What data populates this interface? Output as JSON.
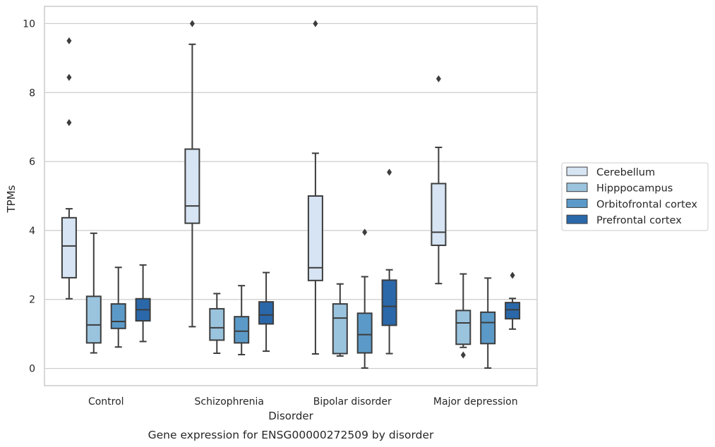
{
  "chart_data": {
    "type": "box",
    "title": "",
    "caption": "Gene expression for ENSG00000272509 by disorder",
    "xlabel": "Disorder",
    "ylabel": "TPMs",
    "ylim": [
      -0.5,
      10.5
    ],
    "yticks": [
      "0",
      "2",
      "4",
      "6",
      "8",
      "10"
    ],
    "grid": "horizontal",
    "legend_position": "right",
    "categories": [
      "Control",
      "Schizophrenia",
      "Bipolar disorder",
      "Major depression"
    ],
    "series": [
      {
        "name": "Cerebellum",
        "color": "#d6e4f3",
        "boxes": [
          {
            "whislo": 2.02,
            "q1": 2.63,
            "med": 3.55,
            "q3": 4.37,
            "whishi": 4.63,
            "fliers": [
              7.13,
              8.44,
              9.5
            ]
          },
          {
            "whislo": 1.21,
            "q1": 4.21,
            "med": 4.71,
            "q3": 6.36,
            "whishi": 9.4,
            "fliers": [
              10.0
            ]
          },
          {
            "whislo": 0.42,
            "q1": 2.55,
            "med": 2.92,
            "q3": 5.0,
            "whishi": 6.24,
            "fliers": [
              10.0
            ]
          },
          {
            "whislo": 2.46,
            "q1": 3.57,
            "med": 3.95,
            "q3": 5.36,
            "whishi": 6.41,
            "fliers": [
              8.4
            ]
          }
        ]
      },
      {
        "name": "Hipppocampus",
        "color": "#9ac3de",
        "boxes": [
          {
            "whislo": 0.45,
            "q1": 0.74,
            "med": 1.26,
            "q3": 2.09,
            "whishi": 3.92,
            "fliers": []
          },
          {
            "whislo": 0.44,
            "q1": 0.82,
            "med": 1.18,
            "q3": 1.73,
            "whishi": 2.17,
            "fliers": []
          },
          {
            "whislo": 0.36,
            "q1": 0.43,
            "med": 1.46,
            "q3": 1.87,
            "whishi": 2.45,
            "fliers": []
          },
          {
            "whislo": 0.61,
            "q1": 0.7,
            "med": 1.32,
            "q3": 1.68,
            "whishi": 2.74,
            "fliers": [
              0.39
            ]
          }
        ]
      },
      {
        "name": "Orbitofrontal cortex",
        "color": "#5b9ac8",
        "boxes": [
          {
            "whislo": 0.62,
            "q1": 1.16,
            "med": 1.36,
            "q3": 1.87,
            "whishi": 2.93,
            "fliers": []
          },
          {
            "whislo": 0.4,
            "q1": 0.74,
            "med": 1.08,
            "q3": 1.5,
            "whishi": 2.4,
            "fliers": []
          },
          {
            "whislo": 0.01,
            "q1": 0.45,
            "med": 0.98,
            "q3": 1.6,
            "whishi": 2.66,
            "fliers": [
              3.95
            ]
          },
          {
            "whislo": 0.01,
            "q1": 0.72,
            "med": 1.33,
            "q3": 1.63,
            "whishi": 2.62,
            "fliers": []
          }
        ]
      },
      {
        "name": "Prefrontal cortex",
        "color": "#2a68aa",
        "boxes": [
          {
            "whislo": 0.78,
            "q1": 1.38,
            "med": 1.7,
            "q3": 2.02,
            "whishi": 3.0,
            "fliers": []
          },
          {
            "whislo": 0.5,
            "q1": 1.29,
            "med": 1.55,
            "q3": 1.93,
            "whishi": 2.78,
            "fliers": []
          },
          {
            "whislo": 0.43,
            "q1": 1.25,
            "med": 1.8,
            "q3": 2.56,
            "whishi": 2.86,
            "fliers": [
              5.69
            ]
          },
          {
            "whislo": 1.14,
            "q1": 1.44,
            "med": 1.7,
            "q3": 1.91,
            "whishi": 2.03,
            "fliers": [
              2.7
            ]
          }
        ]
      }
    ]
  }
}
